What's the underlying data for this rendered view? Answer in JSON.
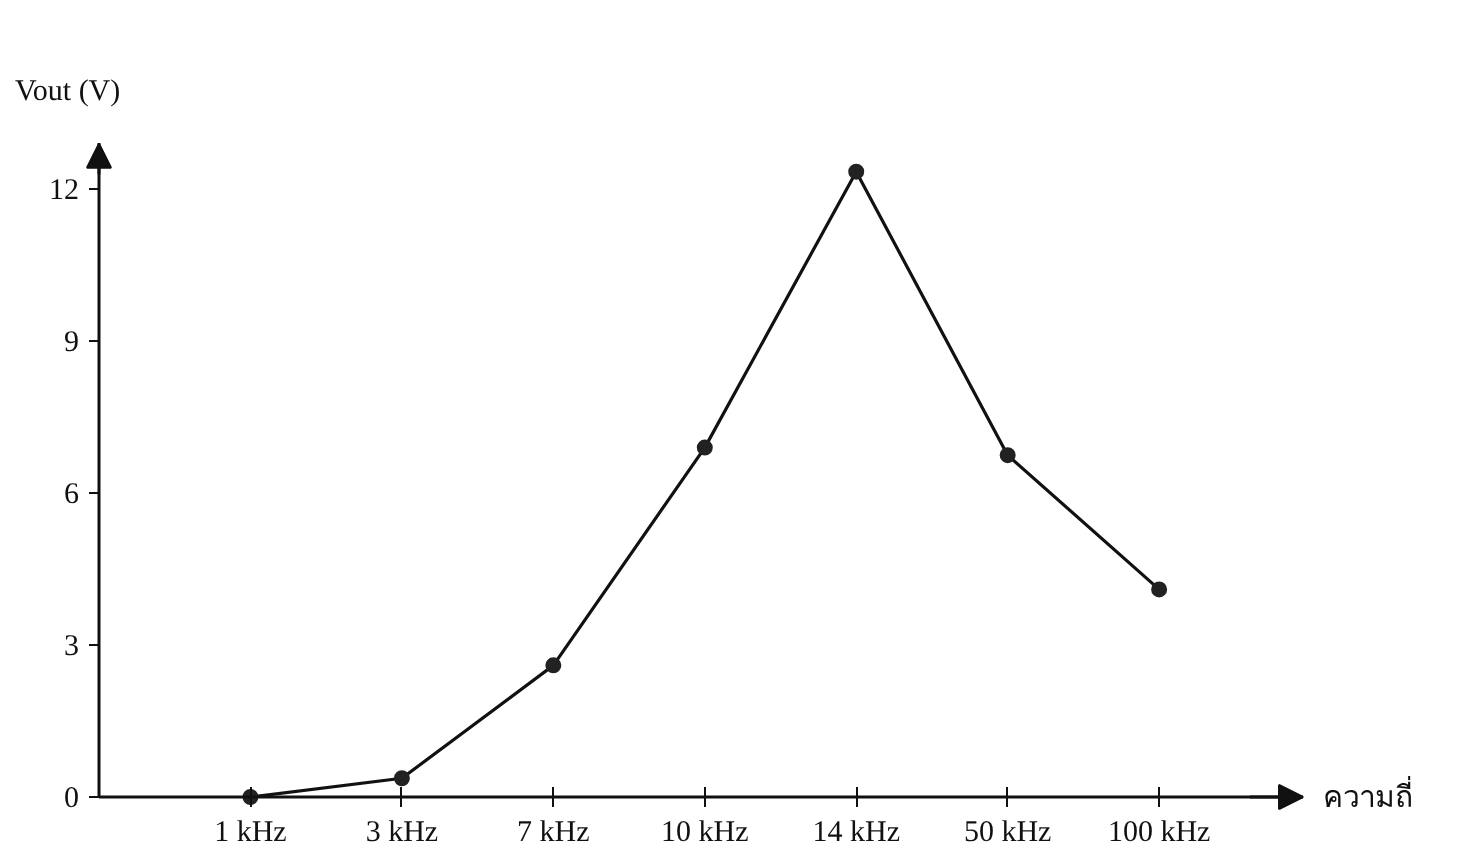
{
  "chart_data": {
    "type": "line",
    "xlabel": "ความถี่",
    "ylabel": "Vout (V)",
    "categories": [
      "1 kHz",
      "3 kHz",
      "7 kHz",
      "10 kHz",
      "14 kHz",
      "50 kHz",
      "100 kHz"
    ],
    "values": [
      0,
      0.37,
      2.6,
      6.9,
      12.35,
      6.75,
      4.1
    ],
    "color": "#222222",
    "marker": "circle",
    "line_style": "solid",
    "grid": false,
    "ylim": [
      0,
      12.9
    ],
    "yticks": [
      {
        "value": 0,
        "label": "0"
      },
      3,
      6,
      9,
      12
    ]
  }
}
